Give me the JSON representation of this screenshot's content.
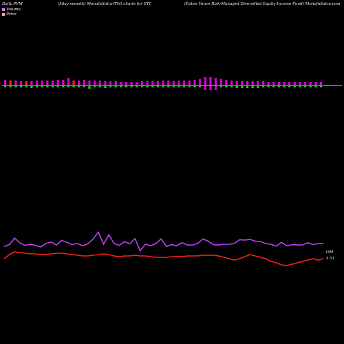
{
  "header": {
    "left": "Daily PVM",
    "middle": "(5day smooth) MunafaSutra(TM) charts for ETJ",
    "right": "(Eaton Vance Risk-Managed Diversified Equity Income Fund) MunafaSutra.com"
  },
  "legend": {
    "volume_label": "Volume",
    "price_label": "Price",
    "volume_color": "#e879f9",
    "price_color": "#fda4a4"
  },
  "colors": {
    "background": "#000000",
    "volume_up": "#d400d4",
    "volume_down": "#ff2222",
    "volume_green": "#22cc22",
    "line_purple": "#c040ff",
    "line_red": "#ff2020",
    "baseline": "#ffffff"
  },
  "chart_data": [
    {
      "type": "bar",
      "title": "",
      "series": [
        {
          "name": "Volume",
          "values": [
            8,
            7,
            7,
            6,
            6,
            6,
            7,
            7,
            7,
            7,
            8,
            8,
            11,
            7,
            7,
            8,
            7,
            7,
            7,
            6,
            6,
            6,
            5,
            5,
            5,
            5,
            6,
            6,
            6,
            6,
            7,
            7,
            6,
            7,
            7,
            7,
            8,
            9,
            12,
            12,
            11,
            9,
            8,
            7,
            6,
            6,
            6,
            6,
            6,
            6,
            5,
            5,
            5,
            5,
            5,
            5,
            5,
            5,
            5,
            5,
            5
          ],
          "colors": [
            "up",
            "down",
            "up",
            "up",
            "down",
            "up",
            "up",
            "up",
            "up",
            "up",
            "up",
            "up",
            "up",
            "down",
            "up",
            "up",
            "up",
            "up",
            "up",
            "up",
            "up",
            "up",
            "up",
            "up",
            "up",
            "up",
            "up",
            "up",
            "up",
            "up",
            "up",
            "up",
            "up",
            "up",
            "up",
            "up",
            "up",
            "up",
            "up",
            "up",
            "up",
            "up",
            "up",
            "up",
            "up",
            "up",
            "up",
            "up",
            "up",
            "up",
            "up",
            "up",
            "up",
            "up",
            "up",
            "up",
            "up",
            "up",
            "up",
            "up",
            "up"
          ],
          "below": [
            0,
            0,
            0,
            0,
            0,
            1,
            0,
            0,
            0,
            0,
            0,
            0,
            0,
            0,
            0,
            0,
            1,
            0,
            0,
            1,
            0,
            0,
            0,
            0,
            0,
            0,
            0,
            0,
            0,
            0,
            0,
            0,
            0,
            0,
            0,
            0,
            0,
            0,
            1,
            1,
            1,
            0,
            0,
            0,
            1,
            1,
            1,
            1,
            1,
            0,
            0,
            0,
            0,
            0,
            0,
            0,
            0,
            0,
            0,
            0,
            0
          ],
          "below_colors": [
            "green",
            "green",
            "green",
            "green",
            "green",
            "green",
            "green",
            "green",
            "green",
            "green",
            "green",
            "green",
            "green",
            "green",
            "green",
            "green",
            "green",
            "green",
            "green",
            "green",
            "green",
            "green",
            "green",
            "green",
            "green",
            "green",
            "green",
            "green",
            "green",
            "green",
            "green",
            "green",
            "green",
            "green",
            "green",
            "green",
            "green",
            "green",
            "red",
            "red",
            "red",
            "green",
            "green",
            "green",
            "green",
            "green",
            "green",
            "green",
            "green",
            "green",
            "green",
            "green",
            "green",
            "green",
            "green",
            "green",
            "green",
            "green",
            "green",
            "green",
            "green"
          ]
        }
      ]
    },
    {
      "type": "line",
      "title": "",
      "series": [
        {
          "name": "",
          "color": "#c040ff",
          "values": [
            66,
            61,
            44,
            56,
            63,
            60,
            63,
            67,
            58,
            54,
            62,
            50,
            55,
            61,
            58,
            64,
            59,
            46,
            28,
            60,
            35,
            58,
            63,
            53,
            59,
            45,
            77,
            60,
            64,
            58,
            46,
            66,
            61,
            64,
            56,
            62,
            62,
            58,
            46,
            52,
            61,
            62,
            60,
            60,
            58,
            48,
            49,
            47,
            52,
            53,
            58,
            60,
            65,
            55,
            64,
            61,
            62,
            62,
            56,
            61,
            58,
            58
          ],
          "end_label": "OM"
        },
        {
          "name": "",
          "color": "#ff2020",
          "values": [
            62,
            60,
            62,
            60,
            60,
            60,
            60,
            60,
            60,
            60,
            60,
            60,
            60,
            60,
            60,
            60,
            60,
            60,
            60,
            60,
            60,
            60,
            60,
            60,
            60,
            60,
            60,
            60,
            60,
            60,
            60,
            60,
            60,
            60,
            60,
            60,
            60,
            60,
            60,
            60,
            60,
            60,
            60,
            60,
            60,
            60,
            60,
            60,
            60,
            60,
            60,
            60,
            60,
            60,
            60,
            60,
            60,
            60,
            60,
            60,
            60,
            60
          ],
          "end_label": "5.51"
        }
      ]
    }
  ]
}
